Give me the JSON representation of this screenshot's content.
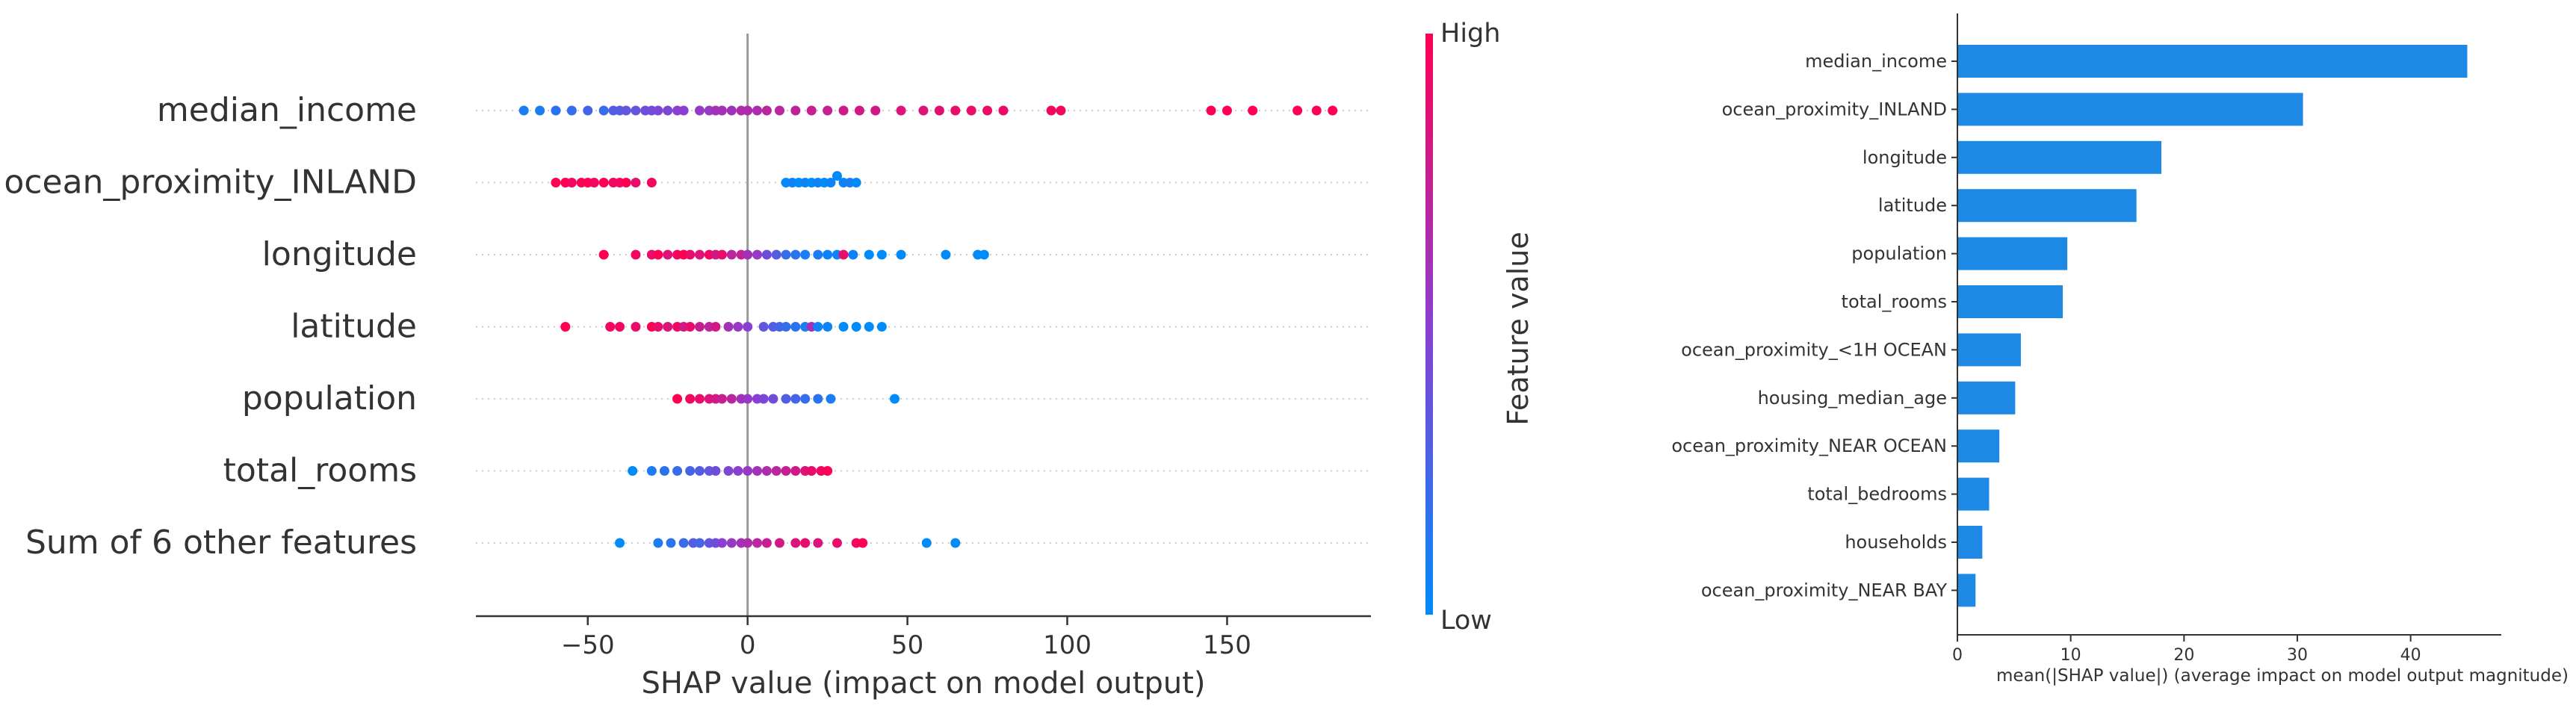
{
  "chart_data": [
    {
      "type": "scatter",
      "subtype": "beeswarm",
      "title": "",
      "xlabel": "SHAP value (impact on model output)",
      "ylabel": "",
      "xlim": [
        -85,
        195
      ],
      "xticks": [
        -50,
        0,
        50,
        100,
        150
      ],
      "xtick_labels": [
        "−50",
        "0",
        "50",
        "100",
        "150"
      ],
      "zero_line": 0,
      "grid": false,
      "colorbar": {
        "label": "Feature value",
        "high_label": "High",
        "low_label": "Low",
        "low_color": "#008bfb",
        "high_color": "#ff0052"
      },
      "categories": [
        "median_income",
        "ocean_proximity_INLAND",
        "longitude",
        "latitude",
        "population",
        "total_rooms",
        "Sum of 6 other features"
      ],
      "series": [
        {
          "values": [
            [
              -70,
              0.1
            ],
            [
              -65,
              0.1
            ],
            [
              -60,
              0.15
            ],
            [
              -55,
              0.2
            ],
            [
              -50,
              0.25
            ],
            [
              -45,
              0.2
            ],
            [
              -42,
              0.3
            ],
            [
              -40,
              0.3
            ],
            [
              -38,
              0.35
            ],
            [
              -35,
              0.35
            ],
            [
              -32,
              0.4
            ],
            [
              -30,
              0.4
            ],
            [
              -28,
              0.45
            ],
            [
              -25,
              0.45
            ],
            [
              -22,
              0.5
            ],
            [
              -20,
              0.5
            ],
            [
              -15,
              0.55
            ],
            [
              -12,
              0.55
            ],
            [
              -10,
              0.6
            ],
            [
              -8,
              0.6
            ],
            [
              -5,
              0.6
            ],
            [
              -2,
              0.65
            ],
            [
              0,
              0.65
            ],
            [
              3,
              0.65
            ],
            [
              6,
              0.7
            ],
            [
              10,
              0.7
            ],
            [
              15,
              0.72
            ],
            [
              20,
              0.75
            ],
            [
              25,
              0.75
            ],
            [
              30,
              0.78
            ],
            [
              35,
              0.8
            ],
            [
              40,
              0.8
            ],
            [
              48,
              0.85
            ],
            [
              55,
              0.85
            ],
            [
              60,
              0.88
            ],
            [
              65,
              0.9
            ],
            [
              70,
              0.9
            ],
            [
              75,
              0.92
            ],
            [
              80,
              0.92
            ],
            [
              95,
              0.95
            ],
            [
              98,
              0.95
            ],
            [
              145,
              1.0
            ],
            [
              150,
              1.0
            ],
            [
              158,
              1.0
            ],
            [
              172,
              1.0
            ],
            [
              178,
              1.0
            ],
            [
              183,
              1.0
            ]
          ]
        },
        {
          "values": [
            [
              -60,
              1.0
            ],
            [
              -57,
              1.0
            ],
            [
              -55,
              0.95
            ],
            [
              -52,
              1.0
            ],
            [
              -50,
              1.0
            ],
            [
              -48,
              0.95
            ],
            [
              -45,
              1.0
            ],
            [
              -42,
              0.95
            ],
            [
              -40,
              0.95
            ],
            [
              -38,
              1.0
            ],
            [
              -35,
              0.9
            ],
            [
              -30,
              0.95
            ],
            [
              12,
              0.0
            ],
            [
              14,
              0.05
            ],
            [
              16,
              0.0
            ],
            [
              18,
              0.05
            ],
            [
              20,
              0.0
            ],
            [
              22,
              0.05
            ],
            [
              24,
              0.0
            ],
            [
              26,
              0.05
            ],
            [
              28,
              0.0
            ],
            [
              30,
              0.05
            ],
            [
              32,
              0.1
            ],
            [
              34,
              0.0
            ]
          ]
        },
        {
          "values": [
            [
              -45,
              1.0
            ],
            [
              -35,
              0.95
            ],
            [
              -30,
              0.9
            ],
            [
              -28,
              1.0
            ],
            [
              -25,
              0.85
            ],
            [
              -22,
              0.95
            ],
            [
              -20,
              1.0
            ],
            [
              -18,
              0.9
            ],
            [
              -15,
              0.85
            ],
            [
              -12,
              0.95
            ],
            [
              -10,
              0.8
            ],
            [
              -8,
              0.9
            ],
            [
              -5,
              0.7
            ],
            [
              -2,
              0.75
            ],
            [
              0,
              0.6
            ],
            [
              3,
              0.55
            ],
            [
              6,
              0.4
            ],
            [
              9,
              0.3
            ],
            [
              12,
              0.2
            ],
            [
              15,
              0.15
            ],
            [
              18,
              0.1
            ],
            [
              22,
              0.1
            ],
            [
              25,
              0.05
            ],
            [
              28,
              0.05
            ],
            [
              30,
              0.9
            ],
            [
              33,
              0.05
            ],
            [
              38,
              0.0
            ],
            [
              42,
              0.0
            ],
            [
              48,
              0.0
            ],
            [
              62,
              0.0
            ],
            [
              72,
              0.0
            ],
            [
              74,
              0.0
            ]
          ]
        },
        {
          "values": [
            [
              -57,
              1.0
            ],
            [
              -43,
              0.95
            ],
            [
              -40,
              0.95
            ],
            [
              -35,
              0.9
            ],
            [
              -30,
              1.0
            ],
            [
              -28,
              0.9
            ],
            [
              -25,
              0.85
            ],
            [
              -22,
              0.95
            ],
            [
              -20,
              0.8
            ],
            [
              -18,
              0.9
            ],
            [
              -15,
              0.75
            ],
            [
              -12,
              0.7
            ],
            [
              -10,
              0.8
            ],
            [
              -6,
              0.6
            ],
            [
              -3,
              0.55
            ],
            [
              0,
              0.5
            ],
            [
              5,
              0.35
            ],
            [
              8,
              0.3
            ],
            [
              10,
              0.25
            ],
            [
              12,
              0.2
            ],
            [
              15,
              0.15
            ],
            [
              18,
              0.1
            ],
            [
              20,
              0.6
            ],
            [
              22,
              0.05
            ],
            [
              25,
              0.05
            ],
            [
              30,
              0.0
            ],
            [
              34,
              0.0
            ],
            [
              38,
              0.0
            ],
            [
              42,
              0.0
            ]
          ]
        },
        {
          "values": [
            [
              -22,
              1.0
            ],
            [
              -18,
              0.95
            ],
            [
              -15,
              0.9
            ],
            [
              -12,
              0.85
            ],
            [
              -10,
              0.8
            ],
            [
              -8,
              0.75
            ],
            [
              -5,
              0.7
            ],
            [
              -2,
              0.6
            ],
            [
              0,
              0.55
            ],
            [
              3,
              0.5
            ],
            [
              5,
              0.45
            ],
            [
              8,
              0.4
            ],
            [
              12,
              0.3
            ],
            [
              15,
              0.25
            ],
            [
              18,
              0.2
            ],
            [
              22,
              0.15
            ],
            [
              26,
              0.1
            ],
            [
              46,
              0.0
            ]
          ]
        },
        {
          "values": [
            [
              -36,
              0.0
            ],
            [
              -30,
              0.1
            ],
            [
              -26,
              0.15
            ],
            [
              -22,
              0.2
            ],
            [
              -18,
              0.25
            ],
            [
              -15,
              0.3
            ],
            [
              -12,
              0.35
            ],
            [
              -10,
              0.4
            ],
            [
              -6,
              0.45
            ],
            [
              -3,
              0.5
            ],
            [
              0,
              0.55
            ],
            [
              3,
              0.6
            ],
            [
              6,
              0.65
            ],
            [
              9,
              0.7
            ],
            [
              12,
              0.75
            ],
            [
              15,
              0.8
            ],
            [
              18,
              0.85
            ],
            [
              20,
              0.9
            ],
            [
              23,
              0.95
            ],
            [
              25,
              1.0
            ]
          ]
        },
        {
          "values": [
            [
              -40,
              0.0
            ],
            [
              -28,
              0.1
            ],
            [
              -24,
              0.15
            ],
            [
              -20,
              0.2
            ],
            [
              -17,
              0.3
            ],
            [
              -15,
              0.25
            ],
            [
              -12,
              0.35
            ],
            [
              -10,
              0.4
            ],
            [
              -8,
              0.5
            ],
            [
              -5,
              0.55
            ],
            [
              -2,
              0.6
            ],
            [
              0,
              0.65
            ],
            [
              3,
              0.7
            ],
            [
              6,
              0.75
            ],
            [
              10,
              0.8
            ],
            [
              15,
              0.85
            ],
            [
              18,
              0.9
            ],
            [
              22,
              0.85
            ],
            [
              28,
              0.9
            ],
            [
              34,
              0.95
            ],
            [
              36,
              1.0
            ],
            [
              56,
              0.0
            ],
            [
              65,
              0.0
            ]
          ]
        }
      ]
    },
    {
      "type": "bar",
      "orientation": "horizontal",
      "title": "",
      "xlabel": "mean(|SHAP value|) (average impact on model output magnitude)",
      "ylabel": "",
      "xlim": [
        0,
        48
      ],
      "xticks": [
        0,
        10,
        20,
        30,
        40
      ],
      "grid": false,
      "bar_color": "#1e88e5",
      "categories": [
        "median_income",
        "ocean_proximity_INLAND",
        "longitude",
        "latitude",
        "population",
        "total_rooms",
        "ocean_proximity_<1H OCEAN",
        "housing_median_age",
        "ocean_proximity_NEAR OCEAN",
        "total_bedrooms",
        "households",
        "ocean_proximity_NEAR BAY"
      ],
      "values": [
        45.0,
        30.5,
        18.0,
        15.8,
        9.7,
        9.3,
        5.6,
        5.1,
        3.7,
        2.8,
        2.2,
        1.6
      ]
    }
  ]
}
